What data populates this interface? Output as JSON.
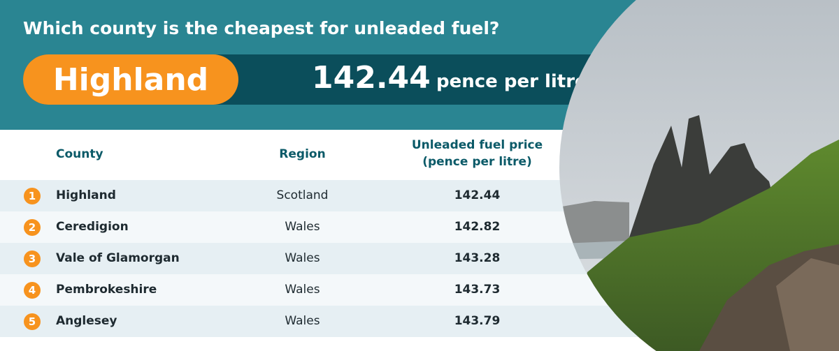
{
  "title": "Which county is the cheapest for unleaded fuel?",
  "highlight": {
    "county": "Highland",
    "value": 142.44,
    "unit": "pence per litre"
  },
  "table": {
    "columns": [
      "County",
      "Region",
      "Unleaded fuel price (pence per litre)"
    ],
    "rows": [
      {
        "rank": 1,
        "county": "Highland",
        "region": "Scotland",
        "price": 142.44
      },
      {
        "rank": 2,
        "county": "Ceredigion",
        "region": "Wales",
        "price": 142.82
      },
      {
        "rank": 3,
        "county": "Vale of Glamorgan",
        "region": "Wales",
        "price": 143.28
      },
      {
        "rank": 4,
        "county": "Pembrokeshire",
        "region": "Wales",
        "price": 143.73
      },
      {
        "rank": 5,
        "county": "Anglesey",
        "region": "Wales",
        "price": 143.79
      }
    ]
  }
}
